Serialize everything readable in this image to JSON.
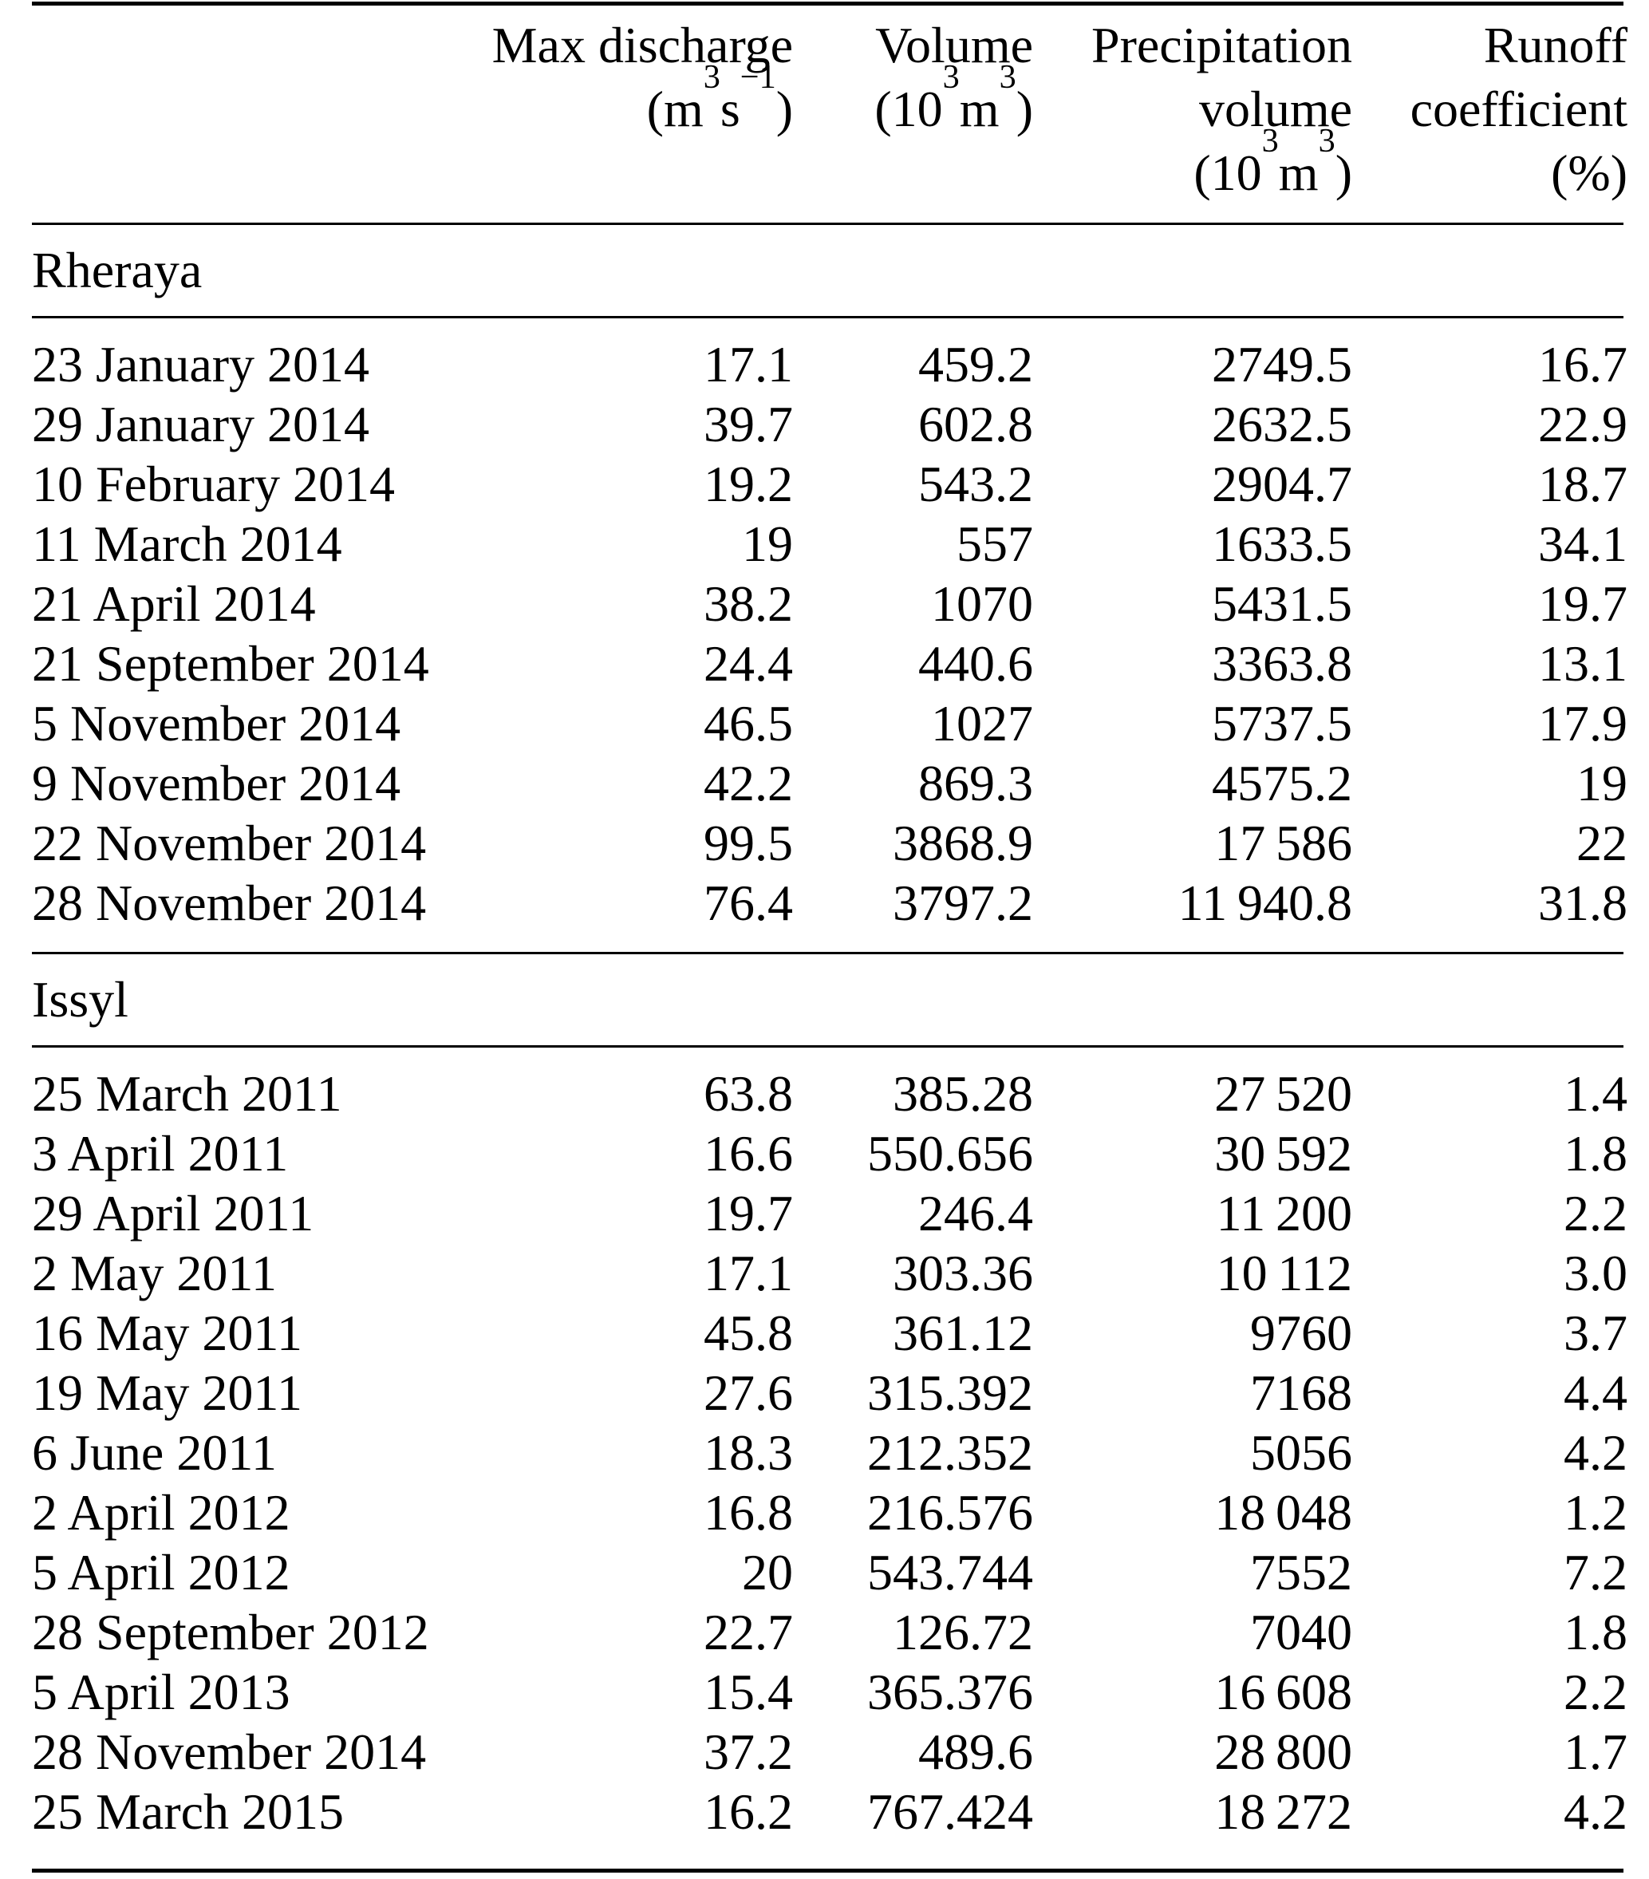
{
  "table": {
    "columns": [
      {
        "id": "event-date",
        "header_lines": []
      },
      {
        "id": "max-discharge",
        "header_lines": [
          "Max discharge",
          "(m^{3} s^{−1})"
        ]
      },
      {
        "id": "volume",
        "header_lines": [
          "Volume",
          "(10^{3} m^{3})"
        ]
      },
      {
        "id": "precipitation-volume",
        "header_lines": [
          "Precipitation",
          "volume",
          "(10^{3} m^{3})"
        ]
      },
      {
        "id": "runoff-coefficient",
        "header_lines": [
          "Runoff",
          "coefficient",
          "(%)"
        ]
      }
    ],
    "sections": [
      {
        "name": "Rheraya",
        "rows": [
          [
            "23 January 2014",
            "17.1",
            "459.2",
            "2749.5",
            "16.7"
          ],
          [
            "29 January 2014",
            "39.7",
            "602.8",
            "2632.5",
            "22.9"
          ],
          [
            "10 February 2014",
            "19.2",
            "543.2",
            "2904.7",
            "18.7"
          ],
          [
            "11 March 2014",
            "19",
            "557",
            "1633.5",
            "34.1"
          ],
          [
            "21 April 2014",
            "38.2",
            "1070",
            "5431.5",
            "19.7"
          ],
          [
            "21 September 2014",
            "24.4",
            "440.6",
            "3363.8",
            "13.1"
          ],
          [
            "5 November 2014",
            "46.5",
            "1027",
            "5737.5",
            "17.9"
          ],
          [
            "9 November 2014",
            "42.2",
            "869.3",
            "4575.2",
            "19"
          ],
          [
            "22 November 2014",
            "99.5",
            "3868.9",
            "17 586",
            "22"
          ],
          [
            "28 November 2014",
            "76.4",
            "3797.2",
            "11 940.8",
            "31.8"
          ]
        ]
      },
      {
        "name": "Issyl",
        "rows": [
          [
            "25 March 2011",
            "63.8",
            "385.28",
            "27 520",
            "1.4"
          ],
          [
            "3 April 2011",
            "16.6",
            "550.656",
            "30 592",
            "1.8"
          ],
          [
            "29 April 2011",
            "19.7",
            "246.4",
            "11 200",
            "2.2"
          ],
          [
            "2 May 2011",
            "17.1",
            "303.36",
            "10 112",
            "3.0"
          ],
          [
            "16 May 2011",
            "45.8",
            "361.12",
            "9760",
            "3.7"
          ],
          [
            "19 May 2011",
            "27.6",
            "315.392",
            "7168",
            "4.4"
          ],
          [
            "6 June 2011",
            "18.3",
            "212.352",
            "5056",
            "4.2"
          ],
          [
            "2 April 2012",
            "16.8",
            "216.576",
            "18 048",
            "1.2"
          ],
          [
            "5 April 2012",
            "20",
            "543.744",
            "7552",
            "7.2"
          ],
          [
            "28 September 2012",
            "22.7",
            "126.72",
            "7040",
            "1.8"
          ],
          [
            "5 April 2013",
            "15.4",
            "365.376",
            "16 608",
            "2.2"
          ],
          [
            "28 November 2014",
            "37.2",
            "489.6",
            "28 800",
            "1.7"
          ],
          [
            "25 March 2015",
            "16.2",
            "767.424",
            "18 272",
            "4.2"
          ]
        ]
      }
    ]
  },
  "colors": {
    "text": "#000000",
    "background": "#ffffff",
    "rule": "#000000"
  }
}
